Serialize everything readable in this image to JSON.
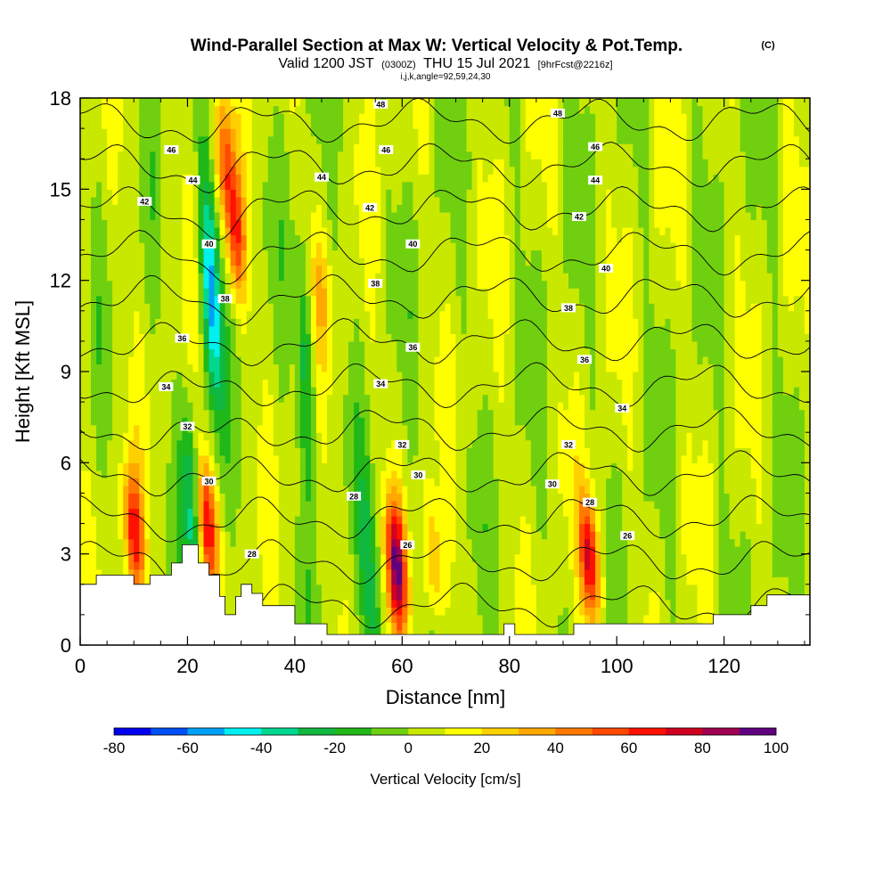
{
  "header": {
    "title": "Wind-Parallel Section at Max W: Vertical Velocity & Pot.Temp.",
    "copyright": "(C)",
    "valid_prefix": "Valid 1200 JST",
    "valid_utc": "(0300Z)",
    "valid_date": "THU 15 Jul 2021",
    "forecast": "[9hrFcst@2216z]",
    "indices": "i,j,k,angle=92,59,24,30"
  },
  "chart_data": {
    "type": "heatmap",
    "xlabel": "Distance [nm]",
    "ylabel": "Height [Kft MSL]",
    "xlim": [
      0,
      136
    ],
    "ylim": [
      0,
      18
    ],
    "x_ticks": [
      0,
      20,
      40,
      60,
      80,
      100,
      120
    ],
    "y_ticks": [
      0,
      3,
      6,
      9,
      12,
      15,
      18
    ],
    "colorbar": {
      "label": "Vertical Velocity [cm/s]",
      "levels": [
        -80,
        -70,
        -60,
        -50,
        -40,
        -30,
        -20,
        -10,
        0,
        10,
        20,
        30,
        40,
        50,
        60,
        70,
        80,
        90,
        100
      ],
      "tick_labels": [
        -80,
        -60,
        -40,
        -20,
        0,
        20,
        40,
        60,
        80,
        100
      ],
      "colors": [
        "#0000f0",
        "#0050f5",
        "#00a0f5",
        "#00f0f0",
        "#00d890",
        "#10b840",
        "#20b818",
        "#70d010",
        "#c8e800",
        "#ffff00",
        "#ffd000",
        "#ffa800",
        "#ff7800",
        "#ff4800",
        "#ff1000",
        "#d00020",
        "#a00050",
        "#600080"
      ]
    },
    "isentropes": {
      "variable": "Potential Temperature",
      "levels": [
        26,
        28,
        30,
        32,
        34,
        36,
        38,
        40,
        42,
        44,
        46,
        48
      ],
      "labels": [
        {
          "text": "48",
          "x": 56,
          "y": 17.8
        },
        {
          "text": "48",
          "x": 89,
          "y": 17.5
        },
        {
          "text": "46",
          "x": 17,
          "y": 16.3
        },
        {
          "text": "46",
          "x": 57,
          "y": 16.3
        },
        {
          "text": "46",
          "x": 96,
          "y": 16.4
        },
        {
          "text": "44",
          "x": 21,
          "y": 15.3
        },
        {
          "text": "44",
          "x": 45,
          "y": 15.4
        },
        {
          "text": "44",
          "x": 96,
          "y": 15.3
        },
        {
          "text": "42",
          "x": 12,
          "y": 14.6
        },
        {
          "text": "42",
          "x": 54,
          "y": 14.4
        },
        {
          "text": "42",
          "x": 93,
          "y": 14.1
        },
        {
          "text": "40",
          "x": 24,
          "y": 13.2
        },
        {
          "text": "40",
          "x": 62,
          "y": 13.2
        },
        {
          "text": "40",
          "x": 98,
          "y": 12.4
        },
        {
          "text": "38",
          "x": 27,
          "y": 11.4
        },
        {
          "text": "38",
          "x": 55,
          "y": 11.9
        },
        {
          "text": "38",
          "x": 91,
          "y": 11.1
        },
        {
          "text": "36",
          "x": 19,
          "y": 10.1
        },
        {
          "text": "36",
          "x": 62,
          "y": 9.8
        },
        {
          "text": "36",
          "x": 94,
          "y": 9.4
        },
        {
          "text": "34",
          "x": 16,
          "y": 8.5
        },
        {
          "text": "34",
          "x": 56,
          "y": 8.6
        },
        {
          "text": "34",
          "x": 101,
          "y": 7.8
        },
        {
          "text": "32",
          "x": 20,
          "y": 7.2
        },
        {
          "text": "32",
          "x": 60,
          "y": 6.6
        },
        {
          "text": "32",
          "x": 91,
          "y": 6.6
        },
        {
          "text": "30",
          "x": 24,
          "y": 5.4
        },
        {
          "text": "30",
          "x": 63,
          "y": 5.6
        },
        {
          "text": "30",
          "x": 88,
          "y": 5.3
        },
        {
          "text": "28",
          "x": 32,
          "y": 3.0
        },
        {
          "text": "28",
          "x": 51,
          "y": 4.9
        },
        {
          "text": "28",
          "x": 95,
          "y": 4.7
        },
        {
          "text": "26",
          "x": 61,
          "y": 3.3
        },
        {
          "text": "26",
          "x": 102,
          "y": 3.6
        }
      ]
    },
    "terrain_kft": [
      [
        0,
        2.0
      ],
      [
        3,
        2.0
      ],
      [
        3,
        2.3
      ],
      [
        10,
        2.3
      ],
      [
        10,
        2.0
      ],
      [
        13,
        2.0
      ],
      [
        13,
        2.3
      ],
      [
        17,
        2.3
      ],
      [
        17,
        2.7
      ],
      [
        19,
        2.7
      ],
      [
        19,
        3.3
      ],
      [
        22,
        3.3
      ],
      [
        22,
        2.7
      ],
      [
        24,
        2.7
      ],
      [
        24,
        2.3
      ],
      [
        26,
        2.3
      ],
      [
        26,
        1.6
      ],
      [
        27,
        1.6
      ],
      [
        27,
        1.0
      ],
      [
        29,
        1.0
      ],
      [
        29,
        1.6
      ],
      [
        30,
        1.6
      ],
      [
        30,
        2.0
      ],
      [
        32,
        2.0
      ],
      [
        32,
        1.7
      ],
      [
        34,
        1.7
      ],
      [
        34,
        1.3
      ],
      [
        40,
        1.3
      ],
      [
        40,
        0.7
      ],
      [
        46,
        0.7
      ],
      [
        46,
        0.35
      ],
      [
        79,
        0.35
      ],
      [
        79,
        0.7
      ],
      [
        81,
        0.7
      ],
      [
        81,
        0.35
      ],
      [
        92,
        0.35
      ],
      [
        92,
        0.7
      ],
      [
        118,
        0.7
      ],
      [
        118,
        1.0
      ],
      [
        125,
        1.0
      ],
      [
        125,
        1.3
      ],
      [
        128,
        1.3
      ],
      [
        128,
        1.65
      ],
      [
        136,
        1.65
      ]
    ],
    "updrafts": [
      {
        "x": 10,
        "y": 3.7,
        "max": 60
      },
      {
        "x": 23.5,
        "y": 4.0,
        "max": 70
      },
      {
        "x": 29,
        "y": 13.5,
        "max": 50
      },
      {
        "x": 27,
        "y": 16.0,
        "max": 40
      },
      {
        "x": 59,
        "y": 2.6,
        "max": 80
      },
      {
        "x": 95,
        "y": 2.8,
        "max": 70
      },
      {
        "x": 45,
        "y": 11.5,
        "max": 20
      },
      {
        "x": 66,
        "y": 2.6,
        "max": 30
      }
    ],
    "downdrafts": [
      {
        "x": 24.5,
        "y": 11.5,
        "min": -60
      },
      {
        "x": 21,
        "y": 4.2,
        "min": -40
      },
      {
        "x": 54,
        "y": 2.0,
        "min": -30
      },
      {
        "x": 42,
        "y": 9.0,
        "min": -30
      }
    ]
  }
}
